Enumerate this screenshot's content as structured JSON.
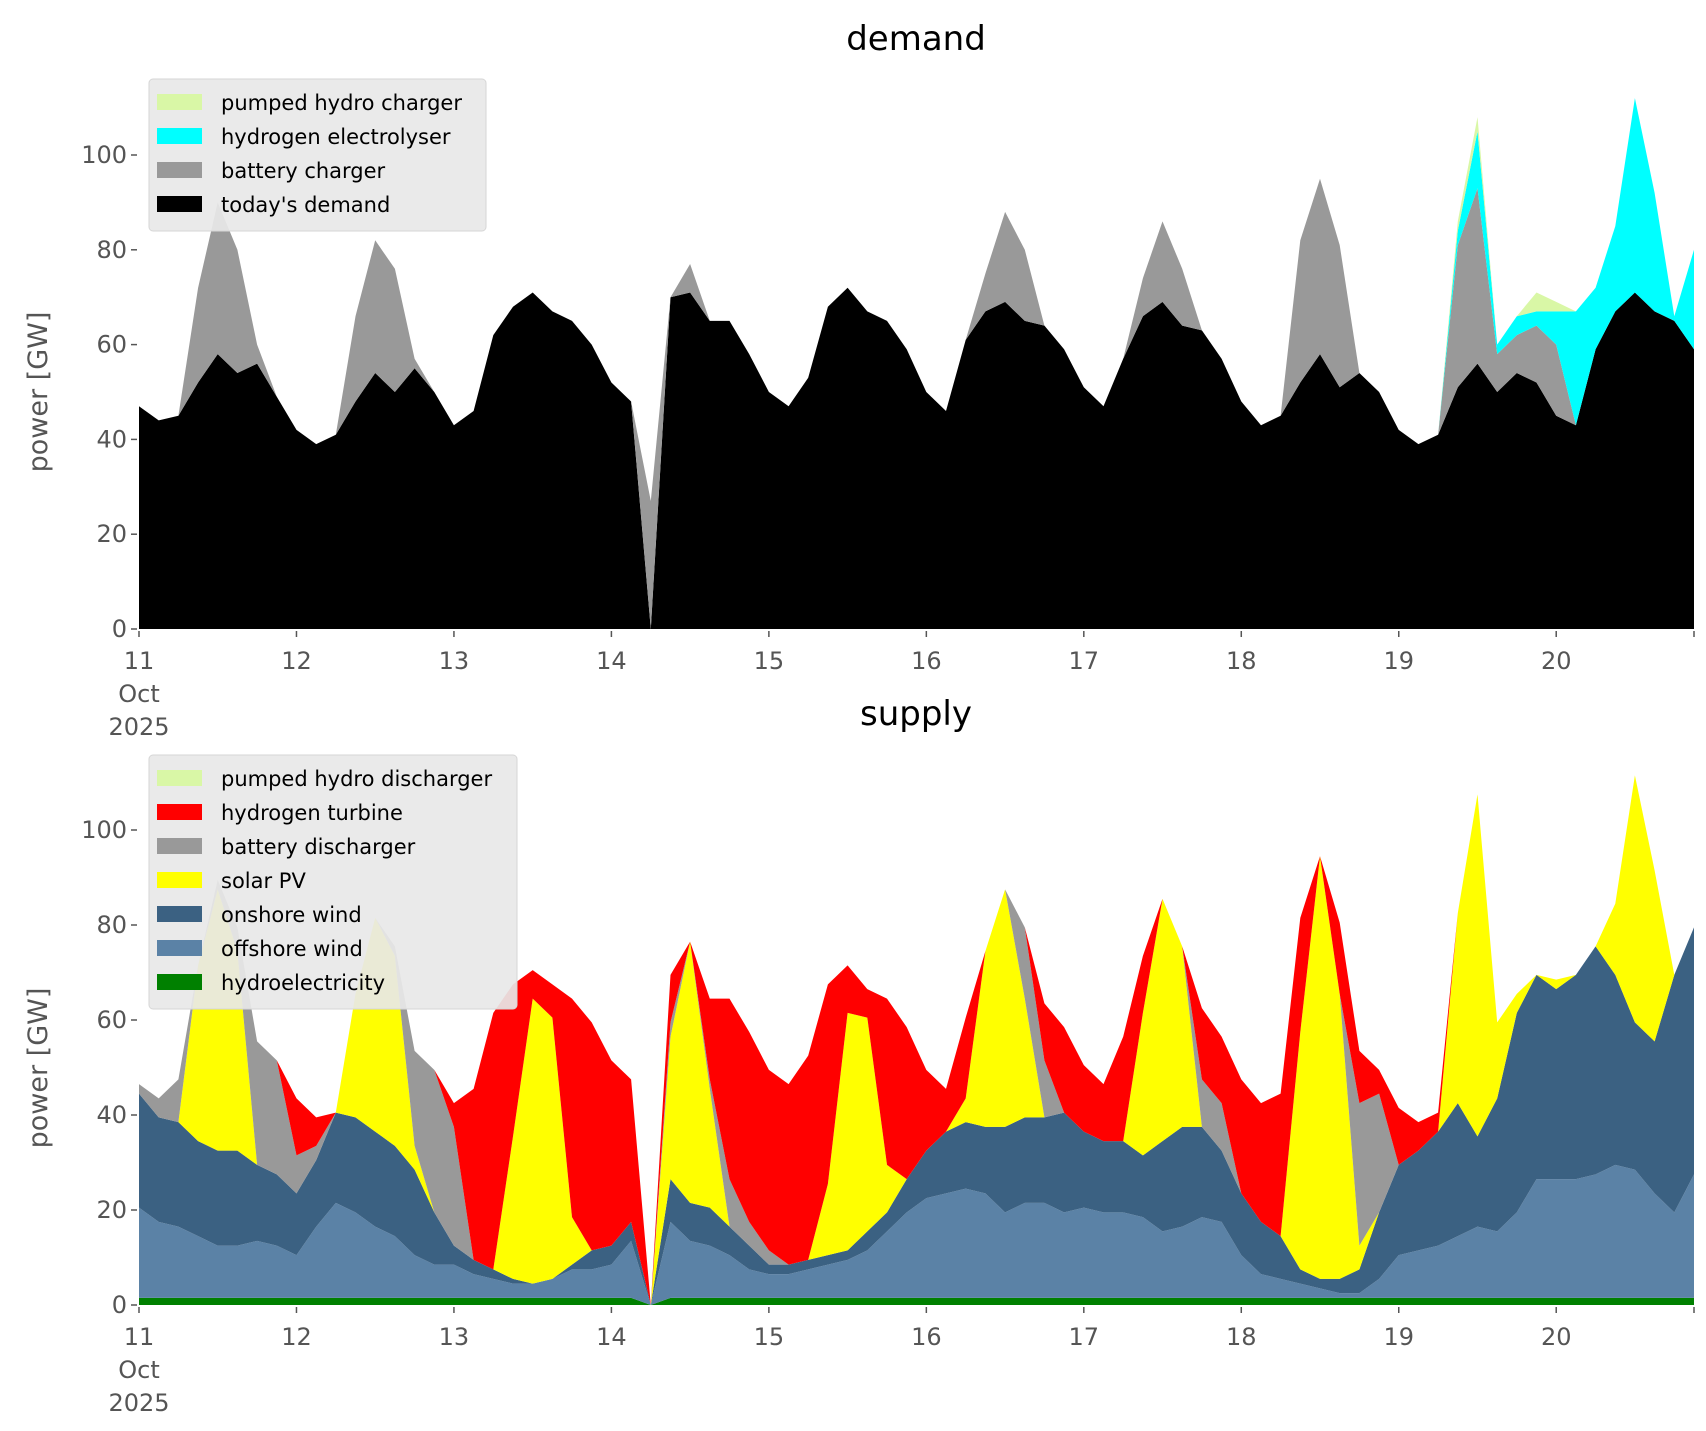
{
  "chart_data": [
    {
      "type": "area",
      "stacked": true,
      "title": "demand",
      "ylabel": "power [GW]",
      "xlabel": "",
      "x_start": "2025-10-11 00:00",
      "x_step_hours": 3,
      "x_tick_labels": [
        "11\nOct\n2025",
        "12",
        "13",
        "14",
        "15",
        "16",
        "17",
        "18",
        "19",
        "20"
      ],
      "y_ticks": [
        0,
        20,
        40,
        60,
        80,
        100
      ],
      "ylim": [
        0,
        115
      ],
      "legend_position": "top-left",
      "series": [
        {
          "name": "today's demand",
          "color": "#000000",
          "values": [
            47,
            44,
            45,
            52,
            58,
            54,
            56,
            49,
            42,
            39,
            41,
            48,
            54,
            50,
            55,
            50,
            43,
            46,
            62,
            68,
            71,
            67,
            65,
            60,
            52,
            48,
            0,
            70,
            71,
            65,
            65,
            58,
            50,
            47,
            53,
            68,
            72,
            67,
            65,
            59,
            50,
            46,
            61,
            67,
            69,
            65,
            64,
            59,
            51,
            47,
            57,
            66,
            69,
            64,
            63,
            57,
            48,
            43,
            45,
            52,
            58,
            51,
            54,
            50,
            42,
            39,
            41,
            51,
            56,
            50,
            54,
            52,
            45,
            43,
            59,
            67,
            71,
            67,
            65,
            59
          ]
        },
        {
          "name": "battery charger",
          "color": "#999999",
          "values": [
            0,
            0,
            0,
            20,
            32,
            26,
            4,
            0,
            0,
            0,
            0,
            18,
            28,
            26,
            2,
            0,
            0,
            0,
            0,
            0,
            0,
            0,
            0,
            0,
            0,
            0,
            27,
            0,
            6,
            0,
            0,
            0,
            0,
            0,
            0,
            0,
            0,
            0,
            0,
            0,
            0,
            0,
            0,
            8,
            19,
            15,
            0,
            0,
            0,
            0,
            0,
            8,
            17,
            12,
            0,
            0,
            0,
            0,
            0,
            30,
            37,
            30,
            0,
            0,
            0,
            0,
            0,
            30,
            37,
            8,
            8,
            12,
            15,
            0,
            0,
            0,
            0,
            0,
            0,
            0
          ]
        },
        {
          "name": "hydrogen electrolyser",
          "color": "#00ffff",
          "values": [
            0,
            0,
            0,
            0,
            0,
            0,
            0,
            0,
            0,
            0,
            0,
            0,
            0,
            0,
            0,
            0,
            0,
            0,
            0,
            0,
            0,
            0,
            0,
            0,
            0,
            0,
            0,
            0,
            0,
            0,
            0,
            0,
            0,
            0,
            0,
            0,
            0,
            0,
            0,
            0,
            0,
            0,
            0,
            0,
            0,
            0,
            0,
            0,
            0,
            0,
            0,
            0,
            0,
            0,
            0,
            0,
            0,
            0,
            0,
            0,
            0,
            0,
            0,
            0,
            0,
            0,
            0,
            3,
            12,
            2,
            4,
            3,
            7,
            24,
            13,
            18,
            41,
            25,
            1,
            21
          ]
        },
        {
          "name": "pumped hydro charger",
          "color": "#d9f7a6",
          "values": [
            0,
            0,
            0,
            0,
            0,
            0,
            0,
            0,
            0,
            0,
            0,
            0,
            0,
            0,
            0,
            0,
            0,
            0,
            0,
            0,
            0,
            0,
            0,
            0,
            0,
            0,
            0,
            0,
            0,
            0,
            0,
            0,
            0,
            0,
            0,
            0,
            0,
            0,
            0,
            0,
            0,
            0,
            0,
            0,
            0,
            0,
            0,
            0,
            0,
            0,
            0,
            0,
            0,
            0,
            0,
            0,
            0,
            0,
            0,
            0,
            0,
            0,
            0,
            0,
            0,
            0,
            0,
            2,
            3,
            0,
            0,
            4,
            2,
            0,
            0,
            0,
            0,
            0,
            0,
            0
          ]
        }
      ]
    },
    {
      "type": "area",
      "stacked": true,
      "title": "supply",
      "ylabel": "power [GW]",
      "xlabel": "",
      "x_start": "2025-10-11 00:00",
      "x_step_hours": 3,
      "x_tick_labels": [
        "11\nOct\n2025",
        "12",
        "13",
        "14",
        "15",
        "16",
        "17",
        "18",
        "19",
        "20"
      ],
      "y_ticks": [
        0,
        20,
        40,
        60,
        80,
        100
      ],
      "ylim": [
        0,
        115
      ],
      "legend_position": "top-left",
      "series": [
        {
          "name": "hydroelectricity",
          "color": "#008000",
          "values": [
            1.5,
            1.5,
            1.5,
            1.5,
            1.5,
            1.5,
            1.5,
            1.5,
            1.5,
            1.5,
            1.5,
            1.5,
            1.5,
            1.5,
            1.5,
            1.5,
            1.5,
            1.5,
            1.5,
            1.5,
            1.5,
            1.5,
            1.5,
            1.5,
            1.5,
            1.5,
            0,
            1.5,
            1.5,
            1.5,
            1.5,
            1.5,
            1.5,
            1.5,
            1.5,
            1.5,
            1.5,
            1.5,
            1.5,
            1.5,
            1.5,
            1.5,
            1.5,
            1.5,
            1.5,
            1.5,
            1.5,
            1.5,
            1.5,
            1.5,
            1.5,
            1.5,
            1.5,
            1.5,
            1.5,
            1.5,
            1.5,
            1.5,
            1.5,
            1.5,
            1.5,
            1.5,
            1.5,
            1.5,
            1.5,
            1.5,
            1.5,
            1.5,
            1.5,
            1.5,
            1.5,
            1.5,
            1.5,
            1.5,
            1.5,
            1.5,
            1.5,
            1.5,
            1.5,
            1.5
          ]
        },
        {
          "name": "offshore wind",
          "color": "#5b82a6",
          "values": [
            19,
            16,
            15,
            13,
            11,
            11,
            12,
            11,
            9,
            15,
            20,
            18,
            15,
            13,
            9,
            7,
            7,
            5,
            4,
            3,
            3,
            4,
            6,
            6,
            7,
            12,
            0,
            16,
            12,
            11,
            9,
            6,
            5,
            5,
            6,
            7,
            8,
            10,
            14,
            18,
            21,
            22,
            23,
            22,
            18,
            20,
            20,
            18,
            19,
            18,
            18,
            17,
            14,
            15,
            17,
            16,
            9,
            5,
            4,
            3,
            2,
            1,
            1,
            4,
            9,
            10,
            11,
            13,
            15,
            14,
            18,
            25,
            25,
            25,
            26,
            28,
            27,
            22,
            18,
            26
          ]
        },
        {
          "name": "onshore wind",
          "color": "#3b6182",
          "values": [
            24,
            22,
            22,
            20,
            20,
            20,
            16,
            15,
            13,
            14,
            19,
            20,
            20,
            19,
            18,
            11,
            4,
            3,
            2,
            1,
            0,
            0,
            1,
            4,
            4,
            4,
            0,
            9,
            8,
            8,
            6,
            5,
            2,
            2,
            2,
            2,
            2,
            4,
            4,
            7,
            10,
            13,
            14,
            14,
            18,
            18,
            18,
            21,
            16,
            15,
            15,
            13,
            19,
            21,
            19,
            15,
            13,
            11,
            9,
            3,
            2,
            3,
            5,
            14,
            19,
            21,
            24,
            28,
            19,
            28,
            42,
            43,
            40,
            43,
            48,
            40,
            31,
            32,
            50,
            52
          ]
        },
        {
          "name": "solar PV",
          "color": "#ffff00",
          "values": [
            0,
            0,
            0,
            37,
            55,
            42,
            0,
            0,
            0,
            0,
            0,
            26,
            45,
            40,
            5,
            0,
            0,
            0,
            0,
            30,
            60,
            55,
            10,
            0,
            0,
            0,
            0,
            30,
            55,
            25,
            0,
            0,
            0,
            0,
            0,
            15,
            50,
            45,
            10,
            0,
            0,
            0,
            5,
            37,
            50,
            25,
            0,
            0,
            0,
            0,
            0,
            30,
            51,
            38,
            0,
            0,
            0,
            0,
            0,
            50,
            89,
            60,
            5,
            0,
            0,
            0,
            0,
            40,
            72,
            16,
            4,
            0,
            2,
            0,
            0,
            15,
            52,
            36,
            0,
            0
          ]
        },
        {
          "name": "battery discharger",
          "color": "#999999",
          "values": [
            2,
            4,
            9,
            0,
            2,
            5,
            26,
            24,
            8,
            3,
            0,
            0,
            0,
            2,
            20,
            30,
            25,
            0,
            0,
            0,
            0,
            0,
            0,
            0,
            0,
            0,
            0,
            3,
            0,
            2,
            10,
            5,
            3,
            0,
            0,
            0,
            0,
            0,
            0,
            0,
            0,
            0,
            0,
            0,
            0,
            15,
            12,
            0,
            0,
            0,
            0,
            0,
            0,
            0,
            10,
            10,
            0,
            0,
            0,
            0,
            0,
            0,
            30,
            25,
            0,
            0,
            0,
            0,
            0,
            0,
            0,
            0,
            0,
            0,
            0,
            0,
            0,
            0,
            0,
            0
          ]
        },
        {
          "name": "hydrogen turbine",
          "color": "#ff0000",
          "values": [
            0,
            0,
            0,
            0,
            0,
            0,
            0,
            0,
            12,
            6,
            0,
            0,
            0,
            0,
            0,
            0,
            5,
            36,
            54,
            32,
            6,
            7,
            46,
            48,
            39,
            30,
            0,
            10,
            0,
            17,
            38,
            40,
            38,
            38,
            43,
            42,
            10,
            6,
            35,
            32,
            17,
            9,
            17,
            0,
            0,
            0,
            12,
            18,
            14,
            12,
            22,
            12,
            0,
            0,
            15,
            14,
            24,
            25,
            30,
            24,
            0,
            15,
            11,
            5,
            12,
            6,
            4,
            0,
            0,
            0,
            0,
            0,
            0,
            0,
            0,
            0,
            0,
            0,
            0,
            0
          ]
        },
        {
          "name": "pumped hydro discharger",
          "color": "#d9f7a6",
          "values": [
            0,
            0,
            0,
            0,
            0,
            0,
            0,
            0,
            0,
            0,
            0,
            0,
            0,
            0,
            0,
            0,
            0,
            0,
            0,
            0,
            0,
            0,
            0,
            0,
            0,
            0,
            0,
            0,
            0,
            0,
            0,
            0,
            0,
            0,
            0,
            0,
            0,
            0,
            0,
            0,
            0,
            0,
            0,
            0,
            0,
            0,
            0,
            0,
            0,
            0,
            0,
            0,
            0,
            0,
            0,
            0,
            0,
            0,
            0,
            0,
            0,
            0,
            0,
            0,
            0,
            0,
            0,
            0,
            0,
            0,
            0,
            0,
            0,
            0,
            0,
            0,
            0,
            0,
            0,
            0
          ]
        }
      ]
    }
  ]
}
